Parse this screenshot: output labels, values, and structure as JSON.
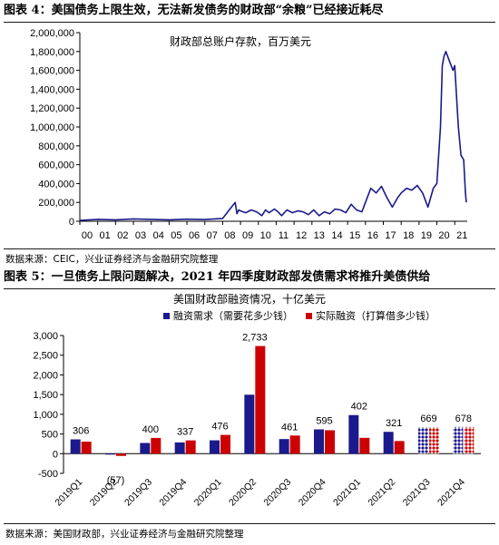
{
  "figure4": {
    "header": "图表 4：美国债务上限生效，无法新发债务的财政部“余粮”已经接近耗尽",
    "source": "数据来源：CEIC，兴业证券经济与金融研究院整理"
  },
  "figure5": {
    "header": "图表 5：一旦债务上限问题解决，2021 年四季度财政部发债需求将推升美债供给",
    "source": "数据来源：美国财政部，兴业证券经济与金融研究院整理"
  },
  "colors": {
    "line": "#1a1a8c",
    "need": "#1a1a8c",
    "actual": "#cc0000"
  },
  "chart_data": [
    {
      "type": "line",
      "title": "财政部总账户存款，百万美元",
      "ylim": [
        0,
        2000000
      ],
      "yticks": [
        "0",
        "200,000",
        "400,000",
        "600,000",
        "800,000",
        "1,000,000",
        "1,200,000",
        "1,400,000",
        "1,600,000",
        "1,800,000",
        "2,000,000"
      ],
      "x_ticks": [
        "00",
        "01",
        "02",
        "03",
        "04",
        "05",
        "06",
        "07",
        "08",
        "09",
        "10",
        "11",
        "12",
        "13",
        "14",
        "15",
        "16",
        "17",
        "18",
        "19",
        "20",
        "21"
      ],
      "x_range": [
        2000,
        2021.7
      ],
      "series": [
        {
          "x": [
            2000.0,
            2001.0,
            2002.0,
            2003.0,
            2004.0,
            2005.0,
            2006.0,
            2007.0,
            2008.0,
            2008.7,
            2008.8,
            2008.9,
            2009.0,
            2009.3,
            2009.6,
            2009.9,
            2010.2,
            2010.4,
            2010.6,
            2010.9,
            2011.1,
            2011.3,
            2011.6,
            2011.9,
            2012.2,
            2012.5,
            2012.8,
            2013.1,
            2013.4,
            2013.7,
            2014.0,
            2014.3,
            2014.6,
            2014.9,
            2015.2,
            2015.5,
            2015.8,
            2016.0,
            2016.3,
            2016.6,
            2016.9,
            2017.2,
            2017.5,
            2017.8,
            2018.0,
            2018.3,
            2018.6,
            2018.9,
            2019.2,
            2019.5,
            2019.8,
            2020.0,
            2020.2,
            2020.3,
            2020.4,
            2020.5,
            2020.7,
            2020.9,
            2021.0,
            2021.2,
            2021.35,
            2021.5,
            2021.6,
            2021.65
          ],
          "y": [
            10000,
            20000,
            15000,
            25000,
            20000,
            15000,
            22000,
            18000,
            30000,
            200000,
            80000,
            120000,
            110000,
            90000,
            120000,
            100000,
            60000,
            120000,
            90000,
            130000,
            100000,
            60000,
            120000,
            90000,
            110000,
            100000,
            70000,
            120000,
            60000,
            100000,
            80000,
            130000,
            120000,
            90000,
            180000,
            120000,
            100000,
            200000,
            350000,
            300000,
            370000,
            250000,
            150000,
            250000,
            300000,
            350000,
            330000,
            380000,
            300000,
            150000,
            350000,
            400000,
            1000000,
            1650000,
            1750000,
            1800000,
            1700000,
            1600000,
            1650000,
            1000000,
            700000,
            650000,
            300000,
            200000
          ]
        }
      ]
    },
    {
      "type": "bar",
      "title": "美国财政部融资情况，十亿美元",
      "categories": [
        "2019Q1",
        "2019Q2",
        "2019Q3",
        "2019Q4",
        "2020Q1",
        "2020Q2",
        "2020Q3",
        "2020Q4",
        "2021Q1",
        "2021Q2",
        "2021Q3",
        "2021Q4"
      ],
      "ylim": [
        -500,
        3000
      ],
      "yticks": [
        "-500",
        "0",
        "500",
        "1,000",
        "1,500",
        "2,000",
        "2,500",
        "3,000"
      ],
      "series": [
        {
          "name": "融资需求（需要花多少钱）",
          "values": [
            363,
            -10,
            272,
            286,
            339,
            1497,
            371,
            617,
            980,
            554,
            669,
            678
          ]
        },
        {
          "name": "实际融资（打算借多少钱）",
          "values": [
            306,
            -57,
            400,
            337,
            476,
            2733,
            461,
            595,
            402,
            321,
            669,
            678
          ]
        }
      ],
      "forecast": [
        false,
        false,
        false,
        false,
        false,
        false,
        false,
        false,
        false,
        false,
        true,
        true
      ],
      "data_labels": [
        "306",
        "(57)",
        "400",
        "337",
        "476",
        "2,733",
        "461",
        "595",
        "402",
        "321",
        "669",
        "678"
      ]
    }
  ]
}
